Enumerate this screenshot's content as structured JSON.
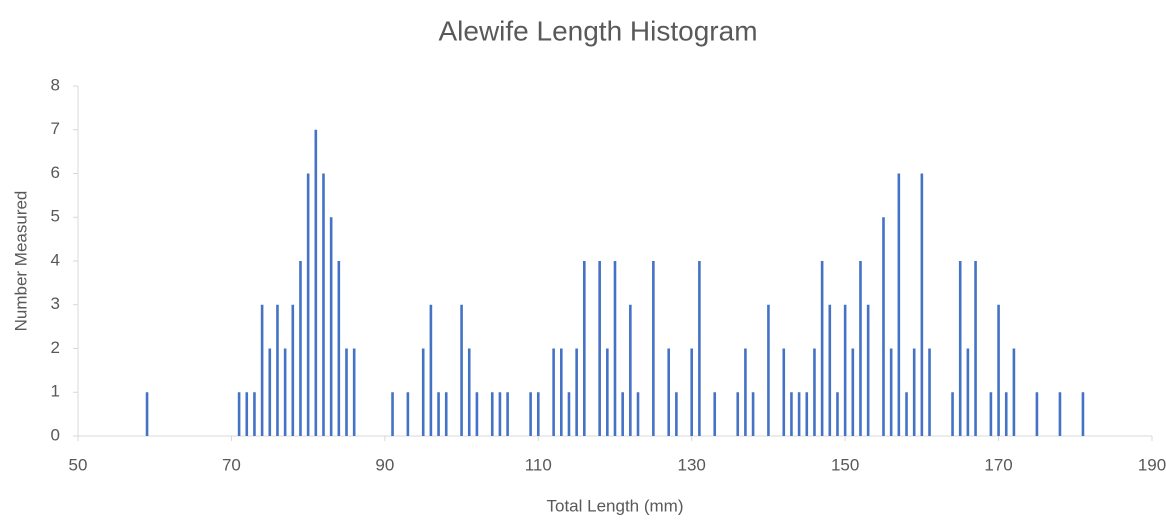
{
  "chart_data": {
    "type": "bar",
    "title": "Alewife Length Histogram",
    "x_label": "Total Length (mm)",
    "y_label": "Number Measured",
    "color": "#4472c4",
    "x": [
      59,
      71,
      72,
      73,
      74,
      75,
      76,
      77,
      78,
      79,
      80,
      81,
      82,
      83,
      84,
      85,
      86,
      91,
      93,
      95,
      96,
      97,
      98,
      100,
      101,
      102,
      104,
      105,
      106,
      109,
      110,
      112,
      113,
      114,
      115,
      116,
      118,
      119,
      120,
      121,
      122,
      123,
      125,
      127,
      128,
      130,
      131,
      133,
      136,
      137,
      138,
      140,
      142,
      143,
      144,
      145,
      146,
      147,
      148,
      149,
      150,
      151,
      152,
      153,
      155,
      156,
      157,
      158,
      159,
      160,
      161,
      164,
      165,
      166,
      167,
      169,
      170,
      171,
      172,
      175,
      178,
      181
    ],
    "values": [
      1,
      1,
      1,
      1,
      3,
      2,
      3,
      2,
      3,
      4,
      6,
      7,
      6,
      5,
      4,
      2,
      2,
      1,
      1,
      2,
      3,
      1,
      1,
      3,
      2,
      1,
      1,
      1,
      1,
      1,
      1,
      2,
      2,
      1,
      2,
      4,
      4,
      2,
      4,
      1,
      3,
      1,
      4,
      2,
      1,
      2,
      4,
      1,
      1,
      2,
      1,
      3,
      2,
      1,
      1,
      1,
      2,
      4,
      3,
      1,
      3,
      2,
      4,
      3,
      5,
      2,
      6,
      1,
      2,
      6,
      2,
      1,
      4,
      2,
      4,
      1,
      3,
      1,
      2,
      1,
      1,
      1
    ],
    "xlim": [
      50,
      190
    ],
    "xticks": [
      50,
      70,
      90,
      110,
      130,
      150,
      170,
      190
    ],
    "ylim": [
      0,
      8
    ],
    "yticks": [
      0,
      1,
      2,
      3,
      4,
      5,
      6,
      7,
      8
    ],
    "grid": false
  }
}
